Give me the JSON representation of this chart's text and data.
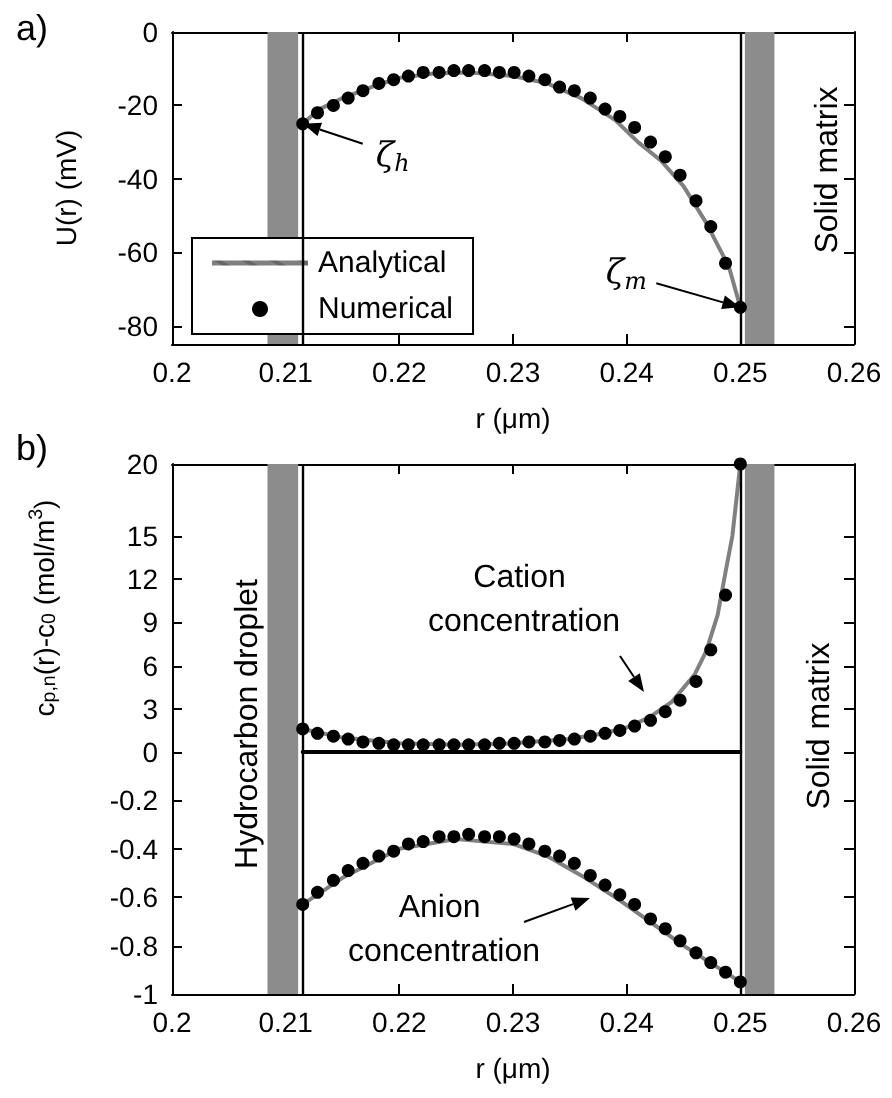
{
  "chart_data": [
    {
      "type": "line",
      "title": "a)",
      "xlabel": "r (μm)",
      "ylabel": "U(r) (mV)",
      "xlim": [
        0.2,
        0.26
      ],
      "xticks": [
        0.2,
        0.21,
        0.22,
        0.23,
        0.24,
        0.25,
        0.26
      ],
      "ylim": [
        -85,
        0
      ],
      "yticks": [
        -80,
        -60,
        -40,
        -20,
        0
      ],
      "legend": "bottom left",
      "bands": [
        {
          "axis": "x",
          "from": 0.2084,
          "to": 0.2111,
          "color": "#8c8c8c"
        },
        {
          "axis": "x",
          "from": 0.2504,
          "to": 0.253,
          "color": "#8c8c8c"
        }
      ],
      "ref_lines": [
        {
          "axis": "x",
          "value": 0.2115,
          "color": "#000000"
        },
        {
          "axis": "x",
          "value": 0.25,
          "color": "#000000"
        }
      ],
      "annotations": [
        {
          "text": "ζ$_{h}$",
          "x": 0.2115,
          "y": -25
        },
        {
          "text": "ζ$_{m}$",
          "x": 0.25,
          "y": -75
        },
        "Solid matrix"
      ],
      "series": [
        {
          "name": "Analytical",
          "color": "#808080",
          "marker": "none",
          "x": [
            0.2115,
            0.213,
            0.215,
            0.218,
            0.22,
            0.223,
            0.226,
            0.23,
            0.233,
            0.236,
            0.239,
            0.241,
            0.243,
            0.245,
            0.247,
            0.249,
            0.25
          ],
          "values": [
            -25,
            -21,
            -18,
            -14.5,
            -12.5,
            -11.3,
            -11,
            -12,
            -14,
            -18,
            -24,
            -30,
            -35,
            -42,
            -52,
            -64,
            -75
          ]
        },
        {
          "name": "Numerical",
          "type": "scatter",
          "color": "#000000",
          "marker": "circle",
          "x": [
            0.2115,
            0.2128,
            0.2142,
            0.2155,
            0.2168,
            0.2182,
            0.2195,
            0.2208,
            0.2221,
            0.2235,
            0.2248,
            0.2261,
            0.2275,
            0.2288,
            0.2301,
            0.2314,
            0.2328,
            0.2341,
            0.2354,
            0.2368,
            0.2381,
            0.2394,
            0.2407,
            0.2421,
            0.2434,
            0.2447,
            0.2461,
            0.2474,
            0.2487,
            0.25
          ],
          "values": [
            -25,
            -22,
            -20,
            -18,
            -16,
            -14,
            -13,
            -12,
            -11,
            -11,
            -10.5,
            -10.5,
            -10.5,
            -11,
            -11,
            -12,
            -13,
            -15,
            -16,
            -18,
            -21,
            -23,
            -26,
            -30,
            -34,
            -39,
            -46,
            -53,
            -63,
            -75
          ]
        }
      ]
    },
    {
      "type": "line",
      "title": "b)",
      "ylabel": "c$_{p,n}$(r)-c$_{0}$ (mol/m$^{3}$)",
      "xlim": [
        0.2,
        0.26
      ],
      "xticks": [
        0.2,
        0.21,
        0.22,
        0.23,
        0.24,
        0.25,
        0.26
      ],
      "ylim": [
        0,
        20
      ],
      "yticks": [
        0,
        3,
        6,
        9,
        12,
        15,
        20
      ],
      "tick_labels": "y",
      "bands": [
        {
          "axis": "x",
          "from": 0.2084,
          "to": 0.2111,
          "color": "#8c8c8c"
        },
        {
          "axis": "x",
          "from": 0.2504,
          "to": 0.253,
          "color": "#8c8c8c"
        }
      ],
      "ref_lines": [
        {
          "axis": "x",
          "value": 0.2115,
          "color": "#000000"
        },
        {
          "axis": "x",
          "value": 0.25,
          "color": "#000000"
        }
      ],
      "annotations": [
        "Cation concentration",
        "Hydrocarbon droplet",
        "Solid matrix"
      ],
      "series": [
        {
          "color": "#000000",
          "marker": "none",
          "x": [
            0.2115,
            0.25
          ],
          "values": [
            0,
            0
          ]
        },
        {
          "color": "#808080",
          "marker": "none",
          "x": [
            0.2115,
            0.215,
            0.22,
            0.225,
            0.23,
            0.235,
            0.238,
            0.24,
            0.242,
            0.244,
            0.246,
            0.247,
            0.248,
            0.2487,
            0.2493,
            0.25
          ],
          "values": [
            1.6,
            1.0,
            0.6,
            0.5,
            0.6,
            0.9,
            1.3,
            1.7,
            2.4,
            3.5,
            5.4,
            7,
            9.5,
            12.5,
            15,
            20
          ]
        },
        {
          "type": "scatter",
          "color": "#000000",
          "marker": "circle",
          "x": [
            0.2115,
            0.2128,
            0.2142,
            0.2155,
            0.2168,
            0.2182,
            0.2195,
            0.2208,
            0.2221,
            0.2235,
            0.2248,
            0.2261,
            0.2275,
            0.2288,
            0.2301,
            0.2314,
            0.2328,
            0.2341,
            0.2354,
            0.2368,
            0.2381,
            0.2394,
            0.2407,
            0.2421,
            0.2434,
            0.2447,
            0.2461,
            0.2474,
            0.2487,
            0.25
          ],
          "values": [
            1.6,
            1.3,
            1.1,
            0.9,
            0.7,
            0.6,
            0.5,
            0.5,
            0.5,
            0.5,
            0.5,
            0.5,
            0.5,
            0.6,
            0.6,
            0.7,
            0.7,
            0.8,
            0.9,
            1.1,
            1.3,
            1.5,
            1.8,
            2.2,
            2.8,
            3.6,
            4.9,
            7.1,
            10.9,
            20
          ]
        }
      ]
    },
    {
      "type": "line",
      "xlabel": "r (μm)",
      "xlim": [
        0.2,
        0.26
      ],
      "xticks": [
        0.2,
        0.21,
        0.22,
        0.23,
        0.24,
        0.25,
        0.26
      ],
      "ylim": [
        -1,
        0
      ],
      "yticks": [
        -1,
        -0.8,
        -0.6,
        -0.4,
        -0.2
      ],
      "bands": [
        {
          "axis": "x",
          "from": 0.2084,
          "to": 0.2111,
          "color": "#8c8c8c"
        },
        {
          "axis": "x",
          "from": 0.2504,
          "to": 0.253,
          "color": "#8c8c8c"
        }
      ],
      "ref_lines": [
        {
          "axis": "x",
          "value": 0.2115,
          "color": "#000000"
        },
        {
          "axis": "x",
          "value": 0.25,
          "color": "#000000"
        }
      ],
      "annotations": [
        "Anion concentration"
      ],
      "series": [
        {
          "color": "#808080",
          "marker": "none",
          "x": [
            0.2115,
            0.215,
            0.22,
            0.225,
            0.23,
            0.233,
            0.236,
            0.239,
            0.242,
            0.245,
            0.248,
            0.25
          ],
          "values": [
            -0.63,
            -0.52,
            -0.4,
            -0.36,
            -0.38,
            -0.43,
            -0.51,
            -0.6,
            -0.7,
            -0.8,
            -0.89,
            -0.95
          ]
        },
        {
          "type": "scatter",
          "color": "#000000",
          "marker": "circle",
          "x": [
            0.2115,
            0.2128,
            0.2142,
            0.2155,
            0.2168,
            0.2182,
            0.2195,
            0.2208,
            0.2221,
            0.2235,
            0.2248,
            0.2261,
            0.2275,
            0.2288,
            0.2301,
            0.2314,
            0.2328,
            0.2341,
            0.2354,
            0.2368,
            0.2381,
            0.2394,
            0.2407,
            0.2421,
            0.2434,
            0.2447,
            0.2461,
            0.2474,
            0.2487,
            0.25
          ],
          "values": [
            -0.63,
            -0.58,
            -0.53,
            -0.49,
            -0.46,
            -0.43,
            -0.41,
            -0.38,
            -0.37,
            -0.35,
            -0.35,
            -0.34,
            -0.35,
            -0.35,
            -0.36,
            -0.38,
            -0.41,
            -0.43,
            -0.46,
            -0.51,
            -0.55,
            -0.59,
            -0.63,
            -0.69,
            -0.73,
            -0.78,
            -0.83,
            -0.87,
            -0.91,
            -0.95
          ]
        }
      ]
    }
  ]
}
